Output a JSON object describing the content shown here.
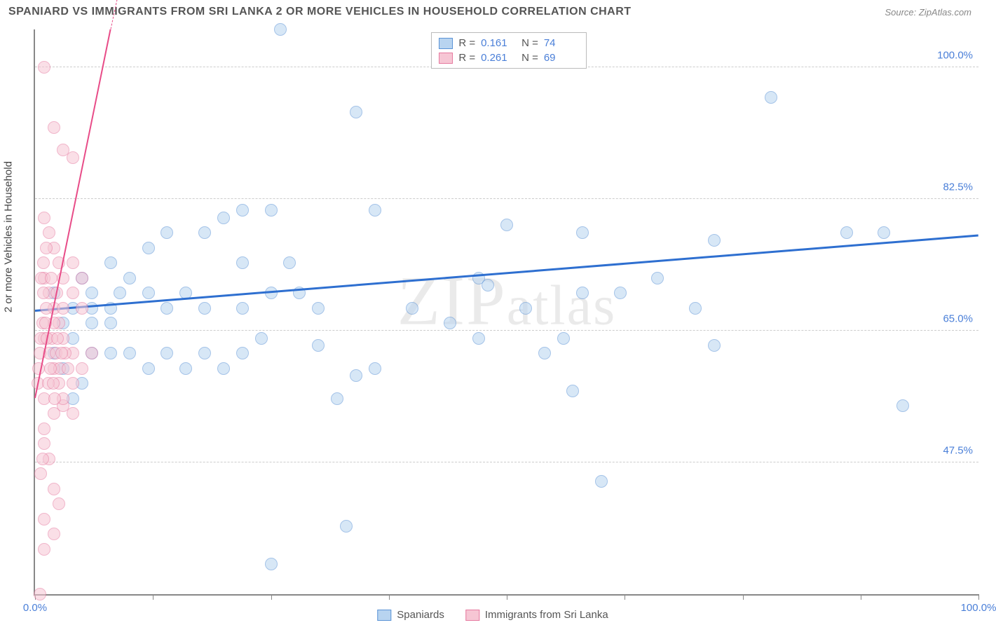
{
  "header": {
    "title": "SPANIARD VS IMMIGRANTS FROM SRI LANKA 2 OR MORE VEHICLES IN HOUSEHOLD CORRELATION CHART",
    "source": "Source: ZipAtlas.com"
  },
  "ylabel": "2 or more Vehicles in Household",
  "watermark": "ZIPatlas",
  "chart": {
    "type": "scatter",
    "background_color": "#ffffff",
    "grid_color": "#cccccc",
    "axis_color": "#888888",
    "xlim": [
      0,
      100
    ],
    "ylim": [
      30,
      105
    ],
    "x_axis_label_min": "0.0%",
    "x_axis_label_max": "100.0%",
    "x_axis_label_color": "#4a7fd8",
    "xtick_positions": [
      0,
      12.5,
      25,
      37.5,
      50,
      62.5,
      75,
      87.5,
      100
    ],
    "yticks": [
      {
        "v": 47.5,
        "label": "47.5%",
        "color": "#4a7fd8"
      },
      {
        "v": 65.0,
        "label": "65.0%",
        "color": "#4a7fd8"
      },
      {
        "v": 82.5,
        "label": "82.5%",
        "color": "#4a7fd8"
      },
      {
        "v": 100.0,
        "label": "100.0%",
        "color": "#4a7fd8"
      }
    ],
    "series": [
      {
        "name": "Spaniards",
        "fill_color": "#b8d4f0",
        "stroke_color": "#5b93d6",
        "marker_radius": 9,
        "fill_opacity": 0.55,
        "trend": {
          "x1": 0,
          "y1": 67.5,
          "x2": 100,
          "y2": 77.5,
          "color": "#2e6fd0",
          "width": 3,
          "dash": "solid"
        },
        "stats": {
          "R": "0.161",
          "N": "74"
        },
        "points": [
          [
            26,
            105
          ],
          [
            34,
            94
          ],
          [
            50,
            79
          ],
          [
            58,
            78
          ],
          [
            58,
            70
          ],
          [
            47,
            72
          ],
          [
            47,
            64
          ],
          [
            36,
            81
          ],
          [
            25,
            81
          ],
          [
            22,
            81
          ],
          [
            20,
            80
          ],
          [
            18,
            78
          ],
          [
            27,
            74
          ],
          [
            22,
            74
          ],
          [
            14,
            78
          ],
          [
            12,
            76
          ],
          [
            10,
            72
          ],
          [
            8,
            74
          ],
          [
            9,
            70
          ],
          [
            12,
            70
          ],
          [
            14,
            68
          ],
          [
            16,
            70
          ],
          [
            18,
            68
          ],
          [
            22,
            68
          ],
          [
            25,
            70
          ],
          [
            28,
            70
          ],
          [
            30,
            68
          ],
          [
            24,
            64
          ],
          [
            22,
            62
          ],
          [
            20,
            60
          ],
          [
            18,
            62
          ],
          [
            16,
            60
          ],
          [
            14,
            62
          ],
          [
            12,
            60
          ],
          [
            10,
            62
          ],
          [
            8,
            62
          ],
          [
            8,
            66
          ],
          [
            6,
            66
          ],
          [
            6,
            70
          ],
          [
            6,
            62
          ],
          [
            5,
            58
          ],
          [
            32,
            56
          ],
          [
            34,
            59
          ],
          [
            36,
            60
          ],
          [
            48,
            71
          ],
          [
            56,
            64
          ],
          [
            57,
            57
          ],
          [
            60,
            45
          ],
          [
            62,
            70
          ],
          [
            66,
            72
          ],
          [
            70,
            68
          ],
          [
            72,
            77
          ],
          [
            78,
            96
          ],
          [
            86,
            78
          ],
          [
            90,
            78
          ],
          [
            92,
            55
          ],
          [
            5,
            72
          ],
          [
            4,
            64
          ],
          [
            3,
            60
          ],
          [
            2,
            62
          ],
          [
            4,
            56
          ],
          [
            30,
            63
          ],
          [
            40,
            68
          ],
          [
            44,
            66
          ],
          [
            52,
            68
          ],
          [
            54,
            62
          ],
          [
            72,
            63
          ],
          [
            2,
            70
          ],
          [
            25,
            34
          ],
          [
            33,
            39
          ],
          [
            4,
            68
          ],
          [
            6,
            68
          ],
          [
            8,
            68
          ],
          [
            3,
            66
          ]
        ]
      },
      {
        "name": "Immigrants from Sri Lanka",
        "fill_color": "#f6c6d4",
        "stroke_color": "#e67aa0",
        "marker_radius": 9,
        "fill_opacity": 0.55,
        "trend": {
          "x1": 0,
          "y1": 56,
          "x2": 8,
          "y2": 105,
          "color": "#e84c88",
          "width": 2.5,
          "dash": "solid"
        },
        "trend_ext": {
          "x1": 8,
          "y1": 105,
          "x2": 14,
          "y2": 140,
          "color": "#e84c88",
          "width": 1.5,
          "dash": "dashed"
        },
        "stats": {
          "R": "0.261",
          "N": "69"
        },
        "points": [
          [
            1,
            100
          ],
          [
            2,
            92
          ],
          [
            3,
            89
          ],
          [
            4,
            88
          ],
          [
            1,
            80
          ],
          [
            1.5,
            78
          ],
          [
            2,
            76
          ],
          [
            2.5,
            74
          ],
          [
            1,
            72
          ],
          [
            1.5,
            70
          ],
          [
            2,
            68
          ],
          [
            2.5,
            66
          ],
          [
            1,
            64
          ],
          [
            1.5,
            62
          ],
          [
            2,
            60
          ],
          [
            2.5,
            58
          ],
          [
            1,
            56
          ],
          [
            3,
            55
          ],
          [
            4,
            54
          ],
          [
            5,
            60
          ],
          [
            4,
            62
          ],
          [
            3,
            64
          ],
          [
            2,
            66
          ],
          [
            1.2,
            68
          ],
          [
            0.8,
            66
          ],
          [
            0.6,
            64
          ],
          [
            0.5,
            62
          ],
          [
            0.4,
            60
          ],
          [
            0.3,
            58
          ],
          [
            1,
            52
          ],
          [
            1.5,
            48
          ],
          [
            2,
            44
          ],
          [
            2.5,
            42
          ],
          [
            1,
            40
          ],
          [
            2,
            38
          ],
          [
            1,
            36
          ],
          [
            3,
            68
          ],
          [
            4,
            70
          ],
          [
            5,
            72
          ],
          [
            6,
            62
          ],
          [
            4,
            58
          ],
          [
            3,
            56
          ],
          [
            2,
            54
          ],
          [
            1,
            50
          ],
          [
            0.8,
            48
          ],
          [
            0.6,
            46
          ],
          [
            3,
            72
          ],
          [
            4,
            74
          ],
          [
            5,
            68
          ],
          [
            0.5,
            30
          ],
          [
            2.2,
            62
          ],
          [
            1.8,
            64
          ],
          [
            2.6,
            60
          ],
          [
            3.2,
            62
          ],
          [
            1.4,
            58
          ],
          [
            0.9,
            70
          ],
          [
            1.1,
            66
          ],
          [
            1.3,
            64
          ],
          [
            1.6,
            60
          ],
          [
            1.9,
            58
          ],
          [
            2.1,
            56
          ],
          [
            2.4,
            64
          ],
          [
            2.8,
            62
          ],
          [
            3.5,
            60
          ],
          [
            0.7,
            72
          ],
          [
            0.9,
            74
          ],
          [
            1.2,
            76
          ],
          [
            1.7,
            72
          ],
          [
            2.3,
            70
          ]
        ]
      }
    ]
  },
  "top_legend": {
    "labels": {
      "R": "R  =",
      "N": "N  ="
    }
  },
  "bottom_legend": {
    "items": [
      {
        "label": "Spaniards",
        "fill": "#b8d4f0",
        "stroke": "#5b93d6"
      },
      {
        "label": "Immigrants from Sri Lanka",
        "fill": "#f6c6d4",
        "stroke": "#e67aa0"
      }
    ]
  }
}
